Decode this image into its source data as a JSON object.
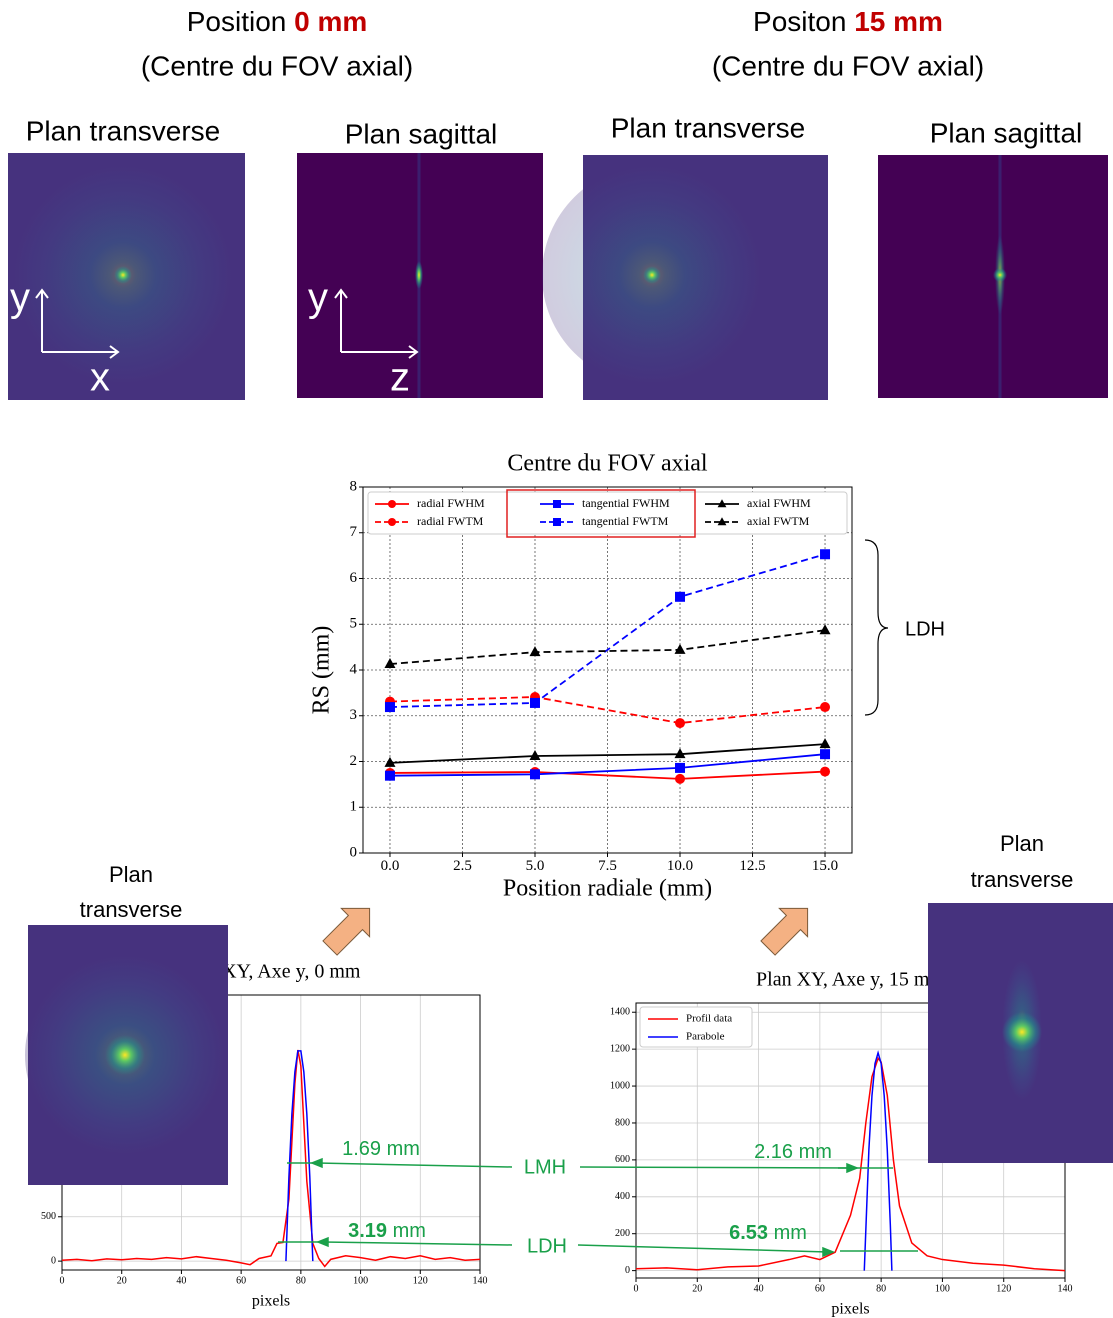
{
  "headers": [
    {
      "prefix": "Position",
      "position": "0 mm",
      "subtitle": "(Centre du FOV axial)"
    },
    {
      "prefix": "Positon",
      "position": "15 mm",
      "subtitle": "(Centre du FOV axial)"
    }
  ],
  "image_labels": [
    "Plan transverse",
    "Plan sagittal",
    "Plan transverse",
    "Plan sagittal"
  ],
  "axis_letters": [
    "y",
    "x",
    "y",
    "z"
  ],
  "bottom_labels": [
    [
      "Plan",
      "transverse"
    ],
    [
      "Plan",
      "transverse"
    ]
  ],
  "measurements": [
    {
      "number": "1.69",
      "unit": "mm"
    },
    {
      "number": "3.19",
      "unit": "mm"
    },
    {
      "number": "2.16",
      "unit": "mm"
    },
    {
      "number": "6.53",
      "unit": "mm"
    }
  ],
  "callouts": [
    "LMH",
    "LDH"
  ],
  "brace_label": "LDH",
  "chart_data": [
    {
      "type": "line",
      "title": "Centre du FOV axial",
      "x_label": "Position radiale (mm)",
      "y_label": "RS (mm)",
      "grid": true,
      "legend": "upper center",
      "x": [
        0,
        5,
        10,
        15
      ],
      "xlim": [
        -0.93,
        15.93
      ],
      "ylim": [
        0,
        8
      ],
      "xticks": [
        {
          "value": 0,
          "label": "0.0"
        },
        {
          "value": 2.5,
          "label": "2.5"
        },
        {
          "value": 5,
          "label": "5.0"
        },
        {
          "value": 7.5,
          "label": "7.5"
        },
        {
          "value": 10,
          "label": "10.0"
        },
        {
          "value": 12.5,
          "label": "12.5"
        },
        {
          "value": 15,
          "label": "15.0"
        }
      ],
      "yticks": [
        0,
        1,
        2,
        3,
        4,
        5,
        6,
        7,
        8
      ],
      "series": [
        {
          "name": "radial FWHM",
          "color": "#ff0000",
          "dashed": false,
          "marker": "circle",
          "values": [
            1.75,
            1.77,
            1.62,
            1.78
          ]
        },
        {
          "name": "radial FWTM",
          "color": "#ff0000",
          "dashed": true,
          "marker": "circle",
          "values": [
            3.31,
            3.41,
            2.84,
            3.19
          ]
        },
        {
          "name": "tangential FWHM",
          "color": "#0000ff",
          "dashed": false,
          "marker": "square",
          "values": [
            1.69,
            1.72,
            1.86,
            2.16
          ]
        },
        {
          "name": "tangential FWTM",
          "color": "#0000ff",
          "dashed": true,
          "marker": "square",
          "values": [
            3.19,
            3.28,
            5.6,
            6.53
          ]
        },
        {
          "name": "axial FWHM",
          "color": "#000000",
          "dashed": false,
          "marker": "triangle",
          "values": [
            1.97,
            2.12,
            2.16,
            2.38
          ]
        },
        {
          "name": "axial FWTM",
          "color": "#000000",
          "dashed": true,
          "marker": "triangle",
          "values": [
            4.13,
            4.39,
            4.44,
            4.87
          ]
        }
      ]
    },
    {
      "type": "line",
      "title": "Plan XY, Axe y, 0 mm",
      "x_label": "pixels",
      "grid": true,
      "xlim": [
        0,
        140
      ],
      "ylim": [
        -100,
        3000
      ],
      "xticks": [
        0,
        20,
        40,
        60,
        80,
        100,
        120,
        140
      ],
      "yticks": [
        0,
        500
      ],
      "series": [
        {
          "color": "#ff0000",
          "dashed": false,
          "x": [
            0,
            5,
            10,
            15,
            20,
            25,
            30,
            35,
            40,
            45,
            50,
            55,
            60,
            63,
            66,
            70,
            72,
            74,
            76,
            78,
            79,
            80,
            82,
            84,
            86,
            88,
            90,
            95,
            100,
            105,
            110,
            115,
            120,
            125,
            130,
            135,
            140
          ],
          "values": [
            10,
            20,
            5,
            25,
            15,
            30,
            20,
            40,
            25,
            50,
            30,
            10,
            -20,
            -40,
            30,
            60,
            200,
            210,
            700,
            2000,
            2380,
            2200,
            900,
            200,
            30,
            -60,
            20,
            60,
            40,
            10,
            50,
            30,
            60,
            20,
            40,
            10,
            20
          ]
        },
        {
          "color": "#0000ff",
          "dashed": false,
          "x": [
            75,
            76,
            77,
            78,
            79,
            80,
            81,
            82,
            83,
            84
          ],
          "values": [
            0,
            948,
            1659,
            2133,
            2370,
            2370,
            2133,
            1659,
            948,
            0
          ]
        }
      ]
    },
    {
      "type": "line",
      "title": "Plan XY, Axe y, 15 mm",
      "x_label": "pixels",
      "grid": true,
      "legend": "upper left",
      "xlim": [
        0,
        140
      ],
      "ylim": [
        -40,
        1450
      ],
      "xticks": [
        0,
        20,
        40,
        60,
        80,
        100,
        120,
        140
      ],
      "yticks": [
        0,
        200,
        400,
        600,
        800,
        1000,
        1200,
        1400
      ],
      "series": [
        {
          "name": "Profil data",
          "color": "#ff0000",
          "dashed": false,
          "x": [
            0,
            10,
            20,
            30,
            40,
            50,
            55,
            60,
            65,
            70,
            73,
            75,
            77,
            79,
            80,
            82,
            84,
            86,
            88,
            90,
            95,
            100,
            110,
            120,
            130,
            140
          ],
          "values": [
            10,
            15,
            5,
            20,
            25,
            60,
            80,
            60,
            100,
            300,
            500,
            800,
            1050,
            1150,
            1130,
            950,
            600,
            350,
            250,
            150,
            80,
            60,
            40,
            30,
            10,
            0
          ]
        },
        {
          "name": "Parabole",
          "color": "#0000ff",
          "dashed": false,
          "x": [
            74.5,
            76,
            77,
            78,
            79,
            80,
            81,
            82,
            83,
            83.5
          ],
          "values": [
            0,
            656,
            947,
            1122,
            1180,
            1122,
            947,
            656,
            247,
            0
          ]
        }
      ]
    }
  ]
}
